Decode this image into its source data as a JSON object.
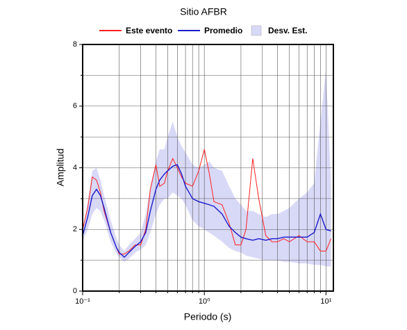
{
  "chart_data": {
    "type": "line",
    "title": "Sitio AFBR",
    "xlabel": "Periodo (s)",
    "ylabel": "Amplitud",
    "xscale": "log",
    "xlim": [
      0.1,
      11.5
    ],
    "ylim": [
      0,
      8
    ],
    "xticks": [
      {
        "value": 0.1,
        "label": "10⁻¹"
      },
      {
        "value": 1,
        "label": "10⁰"
      },
      {
        "value": 10,
        "label": "10¹"
      }
    ],
    "x_minor_ticks": [
      0.2,
      0.3,
      0.4,
      0.5,
      0.6,
      0.7,
      0.8,
      0.9,
      2,
      3,
      4,
      5,
      6,
      7,
      8,
      9
    ],
    "yticks": [
      0,
      2,
      4,
      6,
      8
    ],
    "y_minor_ticks": [
      1,
      3,
      5,
      7
    ],
    "grid": true,
    "legend": "top",
    "x": [
      0.1,
      0.11,
      0.12,
      0.13,
      0.14,
      0.15,
      0.17,
      0.19,
      0.2,
      0.22,
      0.24,
      0.27,
      0.3,
      0.33,
      0.36,
      0.4,
      0.43,
      0.47,
      0.5,
      0.55,
      0.6,
      0.65,
      0.7,
      0.8,
      0.9,
      1.0,
      1.1,
      1.2,
      1.4,
      1.6,
      1.8,
      2.0,
      2.2,
      2.5,
      2.8,
      3.2,
      3.6,
      4,
      4.5,
      5,
      6,
      7,
      8,
      9,
      10,
      11
    ],
    "series": [
      {
        "name": "Este evento",
        "color": "#ff2020",
        "values": [
          2.0,
          2.7,
          3.7,
          3.6,
          3.2,
          2.6,
          1.9,
          1.4,
          1.2,
          1.2,
          1.3,
          1.5,
          1.5,
          2.0,
          3.3,
          4.1,
          3.4,
          3.5,
          3.9,
          4.3,
          4.0,
          3.7,
          3.5,
          3.4,
          3.9,
          4.6,
          3.8,
          2.9,
          2.8,
          2.2,
          1.5,
          1.5,
          2.0,
          4.3,
          3.0,
          1.8,
          1.6,
          1.6,
          1.7,
          1.6,
          1.8,
          1.6,
          1.6,
          1.3,
          1.3,
          1.7
        ]
      },
      {
        "name": "Promedio",
        "color": "#1a1acc",
        "values": [
          1.8,
          2.4,
          3.1,
          3.3,
          3.1,
          2.7,
          1.9,
          1.4,
          1.25,
          1.1,
          1.25,
          1.45,
          1.6,
          1.9,
          2.6,
          3.3,
          3.6,
          3.8,
          3.9,
          4.05,
          4.1,
          3.8,
          3.4,
          3.0,
          2.9,
          2.85,
          2.8,
          2.75,
          2.5,
          2.1,
          1.9,
          1.75,
          1.7,
          1.65,
          1.7,
          1.65,
          1.7,
          1.7,
          1.75,
          1.75,
          1.75,
          1.75,
          1.9,
          2.5,
          2.0,
          1.95
        ]
      },
      {
        "name": "Desv. Est.",
        "color": "#d8d8f7",
        "upper": [
          1.9,
          2.9,
          3.9,
          4.0,
          3.6,
          3.1,
          2.3,
          1.7,
          1.5,
          1.3,
          1.5,
          1.7,
          1.9,
          2.5,
          3.4,
          4.2,
          4.6,
          4.6,
          5.0,
          5.5,
          5.0,
          4.7,
          4.5,
          4.1,
          4.0,
          4.1,
          4.2,
          4.0,
          3.9,
          3.4,
          3.0,
          2.8,
          2.6,
          2.6,
          2.5,
          2.4,
          2.5,
          2.5,
          2.6,
          2.7,
          3.0,
          3.2,
          3.5,
          5.5,
          7.2,
          3.5
        ],
        "lower": [
          1.6,
          2.0,
          2.5,
          2.7,
          2.6,
          2.3,
          1.6,
          1.2,
          1.1,
          0.95,
          1.05,
          1.25,
          1.35,
          1.5,
          1.9,
          2.5,
          2.8,
          3.0,
          3.0,
          3.2,
          3.1,
          3.0,
          2.8,
          2.3,
          2.1,
          2.0,
          1.9,
          1.8,
          1.6,
          1.4,
          1.3,
          1.25,
          1.15,
          1.1,
          1.05,
          1.0,
          1.0,
          1.0,
          0.95,
          0.95,
          0.9,
          0.9,
          0.85,
          0.85,
          0.8,
          0.8
        ]
      }
    ]
  }
}
